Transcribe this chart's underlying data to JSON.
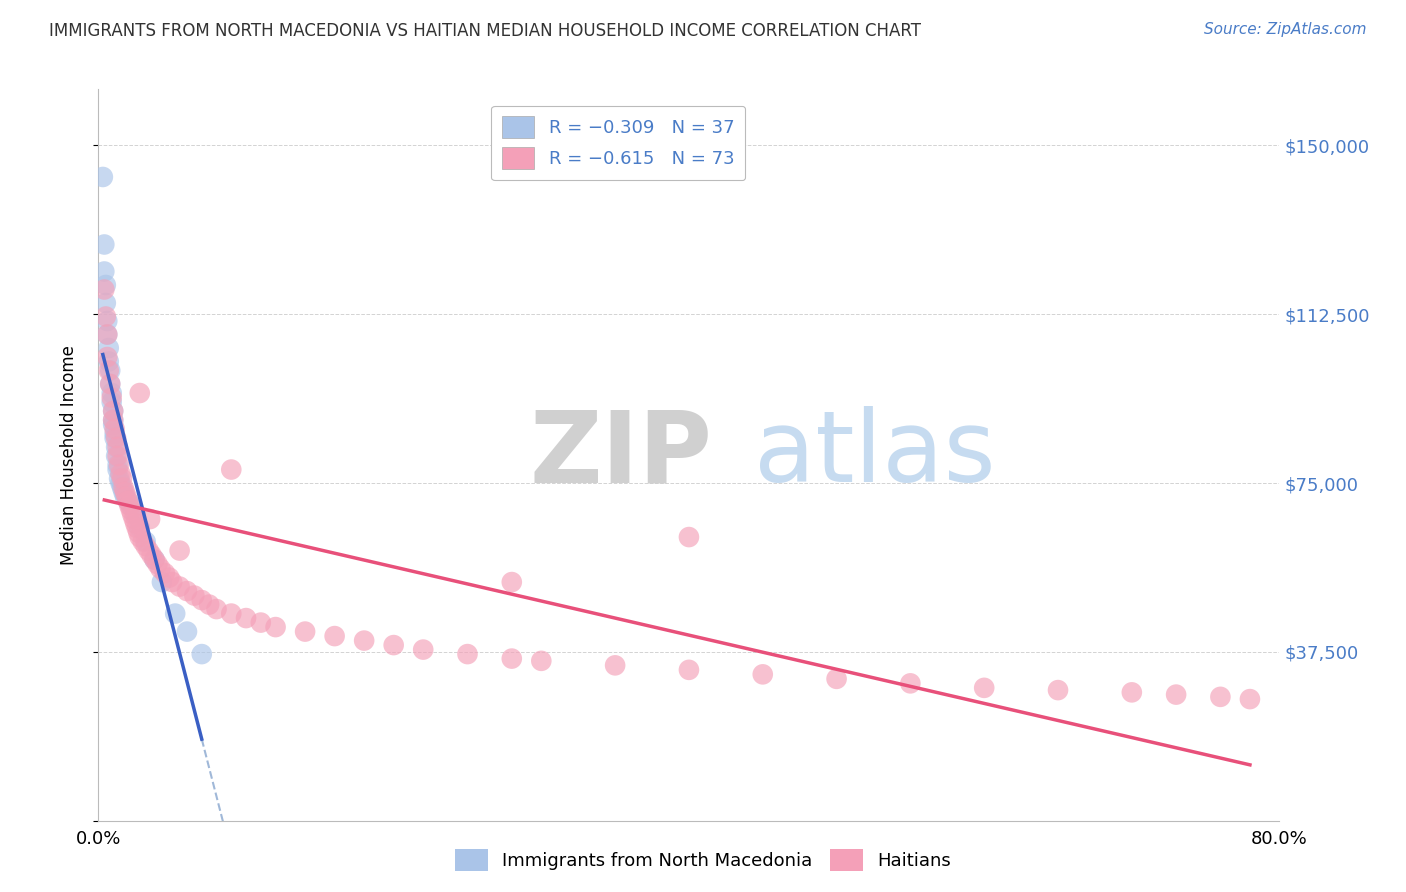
{
  "title": "IMMIGRANTS FROM NORTH MACEDONIA VS HAITIAN MEDIAN HOUSEHOLD INCOME CORRELATION CHART",
  "source": "Source: ZipAtlas.com",
  "ylabel": "Median Household Income",
  "xlim": [
    0.0,
    0.8
  ],
  "ylim": [
    0,
    162500
  ],
  "yticks": [
    0,
    37500,
    75000,
    112500,
    150000
  ],
  "ytick_labels": [
    "",
    "$37,500",
    "$75,000",
    "$112,500",
    "$150,000"
  ],
  "color_blue": "#aac4e8",
  "color_pink": "#f4a0b8",
  "color_blue_line": "#3a5fc4",
  "color_pink_line": "#e8507a",
  "watermark_zip": "ZIP",
  "watermark_atlas": "atlas",
  "nm_x": [
    0.003,
    0.004,
    0.004,
    0.005,
    0.005,
    0.006,
    0.006,
    0.007,
    0.007,
    0.008,
    0.008,
    0.009,
    0.009,
    0.01,
    0.01,
    0.01,
    0.011,
    0.011,
    0.012,
    0.012,
    0.013,
    0.013,
    0.014,
    0.015,
    0.016,
    0.017,
    0.018,
    0.02,
    0.022,
    0.025,
    0.028,
    0.032,
    0.038,
    0.043,
    0.052,
    0.06,
    0.07
  ],
  "nm_y": [
    143000,
    128000,
    122000,
    119000,
    115000,
    111000,
    108000,
    105000,
    102000,
    100000,
    97000,
    95000,
    93000,
    91000,
    89000,
    88000,
    86000,
    85000,
    83000,
    81000,
    79000,
    78000,
    76000,
    75000,
    74000,
    73000,
    72000,
    71000,
    70000,
    68000,
    65000,
    62000,
    58000,
    53000,
    46000,
    42000,
    37000
  ],
  "ht_x": [
    0.004,
    0.005,
    0.006,
    0.006,
    0.007,
    0.008,
    0.009,
    0.01,
    0.01,
    0.011,
    0.012,
    0.013,
    0.013,
    0.014,
    0.015,
    0.016,
    0.017,
    0.018,
    0.019,
    0.02,
    0.021,
    0.022,
    0.023,
    0.024,
    0.025,
    0.026,
    0.027,
    0.028,
    0.03,
    0.032,
    0.034,
    0.036,
    0.038,
    0.04,
    0.042,
    0.045,
    0.048,
    0.05,
    0.055,
    0.06,
    0.065,
    0.07,
    0.075,
    0.08,
    0.09,
    0.1,
    0.11,
    0.12,
    0.14,
    0.16,
    0.18,
    0.2,
    0.22,
    0.25,
    0.28,
    0.3,
    0.35,
    0.4,
    0.45,
    0.5,
    0.55,
    0.6,
    0.65,
    0.7,
    0.73,
    0.76,
    0.78,
    0.028,
    0.09,
    0.035,
    0.055,
    0.4,
    0.28
  ],
  "ht_y": [
    118000,
    112000,
    108000,
    103000,
    100000,
    97000,
    94000,
    91000,
    89000,
    87000,
    85000,
    83000,
    81000,
    79000,
    77000,
    76000,
    74000,
    73000,
    72000,
    71000,
    70000,
    69000,
    68000,
    67000,
    66000,
    65000,
    64000,
    63000,
    62000,
    61000,
    60000,
    59000,
    58000,
    57000,
    56000,
    55000,
    54000,
    53000,
    52000,
    51000,
    50000,
    49000,
    48000,
    47000,
    46000,
    45000,
    44000,
    43000,
    42000,
    41000,
    40000,
    39000,
    38000,
    37000,
    36000,
    35500,
    34500,
    33500,
    32500,
    31500,
    30500,
    29500,
    29000,
    28500,
    28000,
    27500,
    27000,
    95000,
    78000,
    67000,
    60000,
    63000,
    53000
  ]
}
